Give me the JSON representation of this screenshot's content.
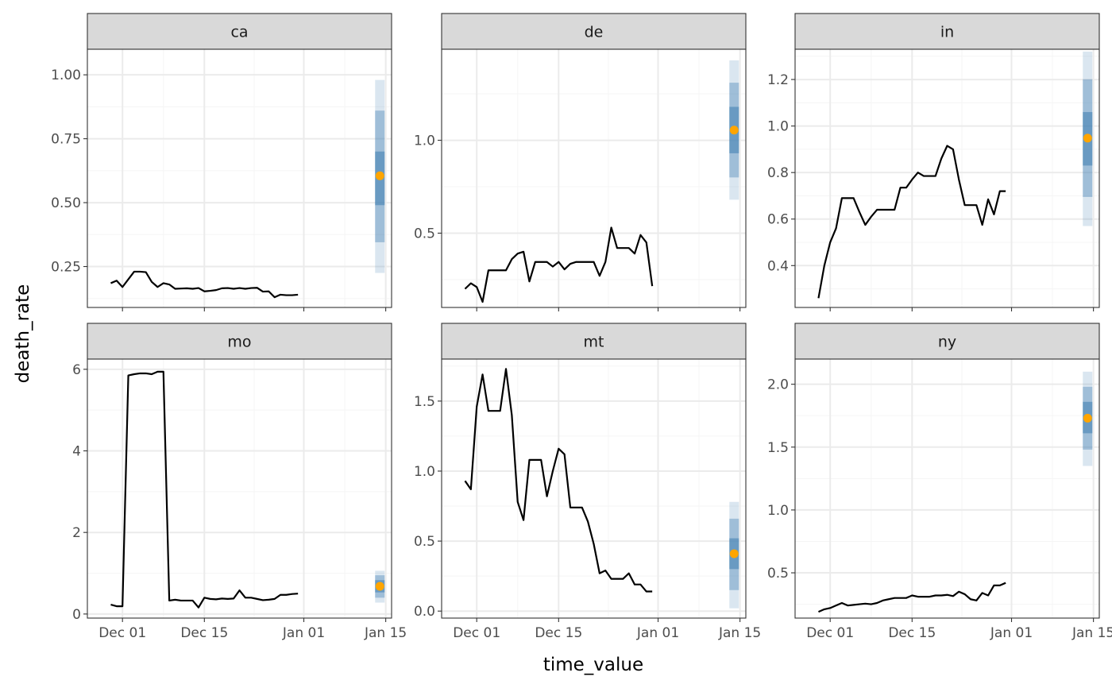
{
  "colors": {
    "line": "#000000",
    "point": "#FFA500",
    "interval": "#4682B4",
    "strip_fill": "#D9D9D9",
    "panel_border": "#333333",
    "grid_major": "#EBEBEB",
    "grid_minor": "#F5F5F5"
  },
  "chart_data": {
    "type": "line",
    "facet": true,
    "xlabel": "time_value",
    "ylabel": "death_rate",
    "grid": true,
    "legend": "none",
    "x_ticks": [
      {
        "date": "2020-12-01",
        "label": "Dec 01"
      },
      {
        "date": "2020-12-15",
        "label": "Dec 15"
      },
      {
        "date": "2021-01-01",
        "label": "Jan 01"
      },
      {
        "date": "2021-01-15",
        "label": "Jan 15"
      }
    ],
    "x_range": [
      "2020-11-25",
      "2021-01-16"
    ],
    "panels": [
      {
        "name": "ca",
        "ylim": [
          0.09,
          1.1
        ],
        "y_ticks": [
          {
            "v": 0.25,
            "label": "0.25"
          },
          {
            "v": 0.5,
            "label": "0.50"
          },
          {
            "v": 0.75,
            "label": "0.75"
          },
          {
            "v": 1.0,
            "label": "1.00"
          }
        ],
        "series": [
          [
            "2020-11-29",
            0.185
          ],
          [
            "2020-11-30",
            0.195
          ],
          [
            "2020-12-01",
            0.17
          ],
          [
            "2020-12-02",
            0.2
          ],
          [
            "2020-12-03",
            0.23
          ],
          [
            "2020-12-04",
            0.23
          ],
          [
            "2020-12-05",
            0.228
          ],
          [
            "2020-12-06",
            0.19
          ],
          [
            "2020-12-07",
            0.17
          ],
          [
            "2020-12-08",
            0.185
          ],
          [
            "2020-12-09",
            0.18
          ],
          [
            "2020-12-10",
            0.163
          ],
          [
            "2020-12-11",
            0.164
          ],
          [
            "2020-12-12",
            0.165
          ],
          [
            "2020-12-13",
            0.163
          ],
          [
            "2020-12-14",
            0.166
          ],
          [
            "2020-12-15",
            0.153
          ],
          [
            "2020-12-16",
            0.155
          ],
          [
            "2020-12-17",
            0.158
          ],
          [
            "2020-12-18",
            0.165
          ],
          [
            "2020-12-19",
            0.166
          ],
          [
            "2020-12-20",
            0.163
          ],
          [
            "2020-12-21",
            0.166
          ],
          [
            "2020-12-22",
            0.163
          ],
          [
            "2020-12-23",
            0.166
          ],
          [
            "2020-12-24",
            0.167
          ],
          [
            "2020-12-25",
            0.152
          ],
          [
            "2020-12-26",
            0.153
          ],
          [
            "2020-12-27",
            0.13
          ],
          [
            "2020-12-28",
            0.14
          ],
          [
            "2020-12-29",
            0.138
          ],
          [
            "2020-12-30",
            0.138
          ],
          [
            "2020-12-31",
            0.14
          ]
        ],
        "forecast": {
          "date": "2021-01-14",
          "point": 0.605,
          "q50": [
            0.49,
            0.7
          ],
          "q80": [
            0.345,
            0.86
          ],
          "q95": [
            0.225,
            0.98
          ]
        }
      },
      {
        "name": "de",
        "ylim": [
          0.1,
          1.49
        ],
        "y_ticks": [
          {
            "v": 0.5,
            "label": "0.5"
          },
          {
            "v": 1.0,
            "label": "1.0"
          }
        ],
        "series": [
          [
            "2020-11-29",
            0.2
          ],
          [
            "2020-11-30",
            0.23
          ],
          [
            "2020-12-01",
            0.21
          ],
          [
            "2020-12-02",
            0.13
          ],
          [
            "2020-12-03",
            0.3
          ],
          [
            "2020-12-04",
            0.3
          ],
          [
            "2020-12-05",
            0.3
          ],
          [
            "2020-12-06",
            0.3
          ],
          [
            "2020-12-07",
            0.36
          ],
          [
            "2020-12-08",
            0.39
          ],
          [
            "2020-12-09",
            0.4
          ],
          [
            "2020-12-10",
            0.24
          ],
          [
            "2020-12-11",
            0.345
          ],
          [
            "2020-12-12",
            0.345
          ],
          [
            "2020-12-13",
            0.345
          ],
          [
            "2020-12-14",
            0.32
          ],
          [
            "2020-12-15",
            0.345
          ],
          [
            "2020-12-16",
            0.305
          ],
          [
            "2020-12-17",
            0.335
          ],
          [
            "2020-12-18",
            0.345
          ],
          [
            "2020-12-19",
            0.345
          ],
          [
            "2020-12-20",
            0.345
          ],
          [
            "2020-12-21",
            0.345
          ],
          [
            "2020-12-22",
            0.27
          ],
          [
            "2020-12-23",
            0.345
          ],
          [
            "2020-12-24",
            0.53
          ],
          [
            "2020-12-25",
            0.42
          ],
          [
            "2020-12-26",
            0.42
          ],
          [
            "2020-12-27",
            0.42
          ],
          [
            "2020-12-28",
            0.39
          ],
          [
            "2020-12-29",
            0.49
          ],
          [
            "2020-12-30",
            0.45
          ],
          [
            "2020-12-31",
            0.215
          ]
        ],
        "forecast": {
          "date": "2021-01-14",
          "point": 1.055,
          "q50": [
            0.93,
            1.18
          ],
          "q80": [
            0.8,
            1.31
          ],
          "q95": [
            0.68,
            1.43
          ]
        }
      },
      {
        "name": "in",
        "ylim": [
          0.22,
          1.33
        ],
        "y_ticks": [
          {
            "v": 0.4,
            "label": "0.4"
          },
          {
            "v": 0.6,
            "label": "0.6"
          },
          {
            "v": 0.8,
            "label": "0.8"
          },
          {
            "v": 1.0,
            "label": "1.0"
          },
          {
            "v": 1.2,
            "label": "1.2"
          }
        ],
        "series": [
          [
            "2020-11-29",
            0.26
          ],
          [
            "2020-11-30",
            0.4
          ],
          [
            "2020-12-01",
            0.5
          ],
          [
            "2020-12-02",
            0.56
          ],
          [
            "2020-12-03",
            0.69
          ],
          [
            "2020-12-04",
            0.69
          ],
          [
            "2020-12-05",
            0.69
          ],
          [
            "2020-12-06",
            0.63
          ],
          [
            "2020-12-07",
            0.575
          ],
          [
            "2020-12-08",
            0.61
          ],
          [
            "2020-12-09",
            0.64
          ],
          [
            "2020-12-10",
            0.64
          ],
          [
            "2020-12-11",
            0.64
          ],
          [
            "2020-12-12",
            0.64
          ],
          [
            "2020-12-13",
            0.735
          ],
          [
            "2020-12-14",
            0.735
          ],
          [
            "2020-12-15",
            0.77
          ],
          [
            "2020-12-16",
            0.8
          ],
          [
            "2020-12-17",
            0.785
          ],
          [
            "2020-12-18",
            0.785
          ],
          [
            "2020-12-19",
            0.785
          ],
          [
            "2020-12-20",
            0.86
          ],
          [
            "2020-12-21",
            0.915
          ],
          [
            "2020-12-22",
            0.9
          ],
          [
            "2020-12-23",
            0.77
          ],
          [
            "2020-12-24",
            0.66
          ],
          [
            "2020-12-25",
            0.66
          ],
          [
            "2020-12-26",
            0.66
          ],
          [
            "2020-12-27",
            0.575
          ],
          [
            "2020-12-28",
            0.685
          ],
          [
            "2020-12-29",
            0.62
          ],
          [
            "2020-12-30",
            0.72
          ],
          [
            "2020-12-31",
            0.72
          ]
        ],
        "forecast": {
          "date": "2021-01-14",
          "point": 0.948,
          "q50": [
            0.83,
            1.06
          ],
          "q80": [
            0.695,
            1.2
          ],
          "q95": [
            0.57,
            1.32
          ]
        }
      },
      {
        "name": "mo",
        "ylim": [
          -0.1,
          6.25
        ],
        "y_ticks": [
          {
            "v": 0,
            "label": "0"
          },
          {
            "v": 2,
            "label": "2"
          },
          {
            "v": 4,
            "label": "4"
          },
          {
            "v": 6,
            "label": "6"
          }
        ],
        "series": [
          [
            "2020-11-29",
            0.23
          ],
          [
            "2020-11-30",
            0.19
          ],
          [
            "2020-12-01",
            0.19
          ],
          [
            "2020-12-02",
            5.85
          ],
          [
            "2020-12-03",
            5.88
          ],
          [
            "2020-12-04",
            5.9
          ],
          [
            "2020-12-05",
            5.9
          ],
          [
            "2020-12-06",
            5.88
          ],
          [
            "2020-12-07",
            5.94
          ],
          [
            "2020-12-08",
            5.94
          ],
          [
            "2020-12-09",
            0.33
          ],
          [
            "2020-12-10",
            0.35
          ],
          [
            "2020-12-11",
            0.33
          ],
          [
            "2020-12-12",
            0.33
          ],
          [
            "2020-12-13",
            0.33
          ],
          [
            "2020-12-14",
            0.16
          ],
          [
            "2020-12-15",
            0.4
          ],
          [
            "2020-12-16",
            0.37
          ],
          [
            "2020-12-17",
            0.36
          ],
          [
            "2020-12-18",
            0.38
          ],
          [
            "2020-12-19",
            0.37
          ],
          [
            "2020-12-20",
            0.38
          ],
          [
            "2020-12-21",
            0.58
          ],
          [
            "2020-12-22",
            0.4
          ],
          [
            "2020-12-23",
            0.4
          ],
          [
            "2020-12-24",
            0.37
          ],
          [
            "2020-12-25",
            0.34
          ],
          [
            "2020-12-26",
            0.35
          ],
          [
            "2020-12-27",
            0.37
          ],
          [
            "2020-12-28",
            0.47
          ],
          [
            "2020-12-29",
            0.47
          ],
          [
            "2020-12-30",
            0.49
          ],
          [
            "2020-12-31",
            0.5
          ]
        ],
        "forecast": {
          "date": "2021-01-14",
          "point": 0.68,
          "q50": [
            0.53,
            0.83
          ],
          "q80": [
            0.4,
            0.95
          ],
          "q95": [
            0.28,
            1.06
          ]
        }
      },
      {
        "name": "mt",
        "ylim": [
          -0.05,
          1.8
        ],
        "y_ticks": [
          {
            "v": 0,
            "label": "0.0"
          },
          {
            "v": 0.5,
            "label": "0.5"
          },
          {
            "v": 1.0,
            "label": "1.0"
          },
          {
            "v": 1.5,
            "label": "1.5"
          }
        ],
        "series": [
          [
            "2020-11-29",
            0.93
          ],
          [
            "2020-11-30",
            0.87
          ],
          [
            "2020-12-01",
            1.46
          ],
          [
            "2020-12-02",
            1.69
          ],
          [
            "2020-12-03",
            1.43
          ],
          [
            "2020-12-04",
            1.43
          ],
          [
            "2020-12-05",
            1.43
          ],
          [
            "2020-12-06",
            1.73
          ],
          [
            "2020-12-07",
            1.4
          ],
          [
            "2020-12-08",
            0.78
          ],
          [
            "2020-12-09",
            0.65
          ],
          [
            "2020-12-10",
            1.08
          ],
          [
            "2020-12-11",
            1.08
          ],
          [
            "2020-12-12",
            1.08
          ],
          [
            "2020-12-13",
            0.82
          ],
          [
            "2020-12-14",
            1.0
          ],
          [
            "2020-12-15",
            1.16
          ],
          [
            "2020-12-16",
            1.12
          ],
          [
            "2020-12-17",
            0.74
          ],
          [
            "2020-12-18",
            0.74
          ],
          [
            "2020-12-19",
            0.74
          ],
          [
            "2020-12-20",
            0.64
          ],
          [
            "2020-12-21",
            0.48
          ],
          [
            "2020-12-22",
            0.27
          ],
          [
            "2020-12-23",
            0.29
          ],
          [
            "2020-12-24",
            0.23
          ],
          [
            "2020-12-25",
            0.23
          ],
          [
            "2020-12-26",
            0.23
          ],
          [
            "2020-12-27",
            0.27
          ],
          [
            "2020-12-28",
            0.19
          ],
          [
            "2020-12-29",
            0.19
          ],
          [
            "2020-12-30",
            0.14
          ],
          [
            "2020-12-31",
            0.14
          ]
        ],
        "forecast": {
          "date": "2021-01-14",
          "point": 0.41,
          "q50": [
            0.3,
            0.52
          ],
          "q80": [
            0.15,
            0.66
          ],
          "q95": [
            0.02,
            0.78
          ]
        }
      },
      {
        "name": "ny",
        "ylim": [
          0.14,
          2.2
        ],
        "y_ticks": [
          {
            "v": 0.5,
            "label": "0.5"
          },
          {
            "v": 1.0,
            "label": "1.0"
          },
          {
            "v": 1.5,
            "label": "1.5"
          },
          {
            "v": 2.0,
            "label": "2.0"
          }
        ],
        "series": [
          [
            "2020-11-29",
            0.19
          ],
          [
            "2020-11-30",
            0.21
          ],
          [
            "2020-12-01",
            0.22
          ],
          [
            "2020-12-02",
            0.24
          ],
          [
            "2020-12-03",
            0.26
          ],
          [
            "2020-12-04",
            0.24
          ],
          [
            "2020-12-05",
            0.245
          ],
          [
            "2020-12-06",
            0.25
          ],
          [
            "2020-12-07",
            0.255
          ],
          [
            "2020-12-08",
            0.25
          ],
          [
            "2020-12-09",
            0.26
          ],
          [
            "2020-12-10",
            0.28
          ],
          [
            "2020-12-11",
            0.29
          ],
          [
            "2020-12-12",
            0.3
          ],
          [
            "2020-12-13",
            0.3
          ],
          [
            "2020-12-14",
            0.3
          ],
          [
            "2020-12-15",
            0.32
          ],
          [
            "2020-12-16",
            0.31
          ],
          [
            "2020-12-17",
            0.31
          ],
          [
            "2020-12-18",
            0.31
          ],
          [
            "2020-12-19",
            0.32
          ],
          [
            "2020-12-20",
            0.32
          ],
          [
            "2020-12-21",
            0.325
          ],
          [
            "2020-12-22",
            0.315
          ],
          [
            "2020-12-23",
            0.35
          ],
          [
            "2020-12-24",
            0.33
          ],
          [
            "2020-12-25",
            0.29
          ],
          [
            "2020-12-26",
            0.28
          ],
          [
            "2020-12-27",
            0.34
          ],
          [
            "2020-12-28",
            0.32
          ],
          [
            "2020-12-29",
            0.4
          ],
          [
            "2020-12-30",
            0.4
          ],
          [
            "2020-12-31",
            0.42
          ]
        ],
        "forecast": {
          "date": "2021-01-14",
          "point": 1.73,
          "q50": [
            1.61,
            1.86
          ],
          "q80": [
            1.48,
            1.98
          ],
          "q95": [
            1.35,
            2.1
          ]
        }
      }
    ]
  }
}
